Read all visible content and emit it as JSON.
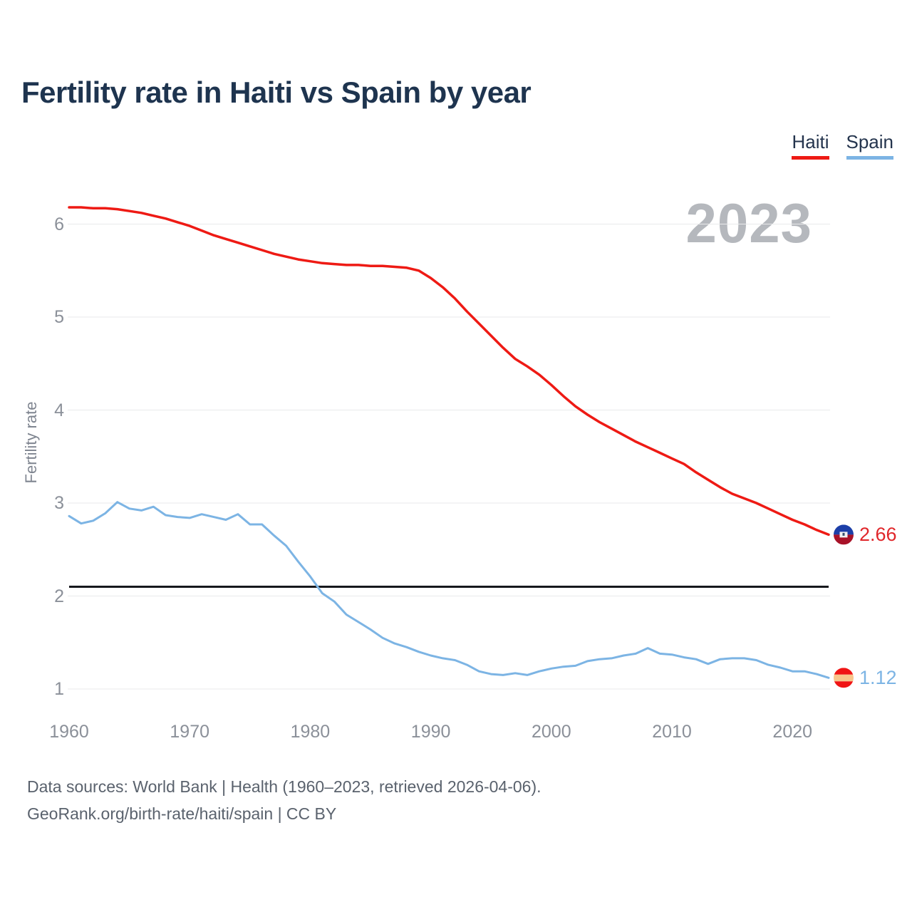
{
  "title": "Fertility rate in Haiti vs Spain by year",
  "watermark_year": "2023",
  "y_axis_title": "Fertility rate",
  "legend": {
    "items": [
      {
        "label": "Haiti",
        "color": "#ee1a14"
      },
      {
        "label": "Spain",
        "color": "#7cb4e4"
      }
    ]
  },
  "footer": {
    "line1": "Data sources: World Bank | Health (1960–2023, retrieved 2026-04-06).",
    "line2": "GeoRank.org/birth-rate/haiti/spain | CC BY"
  },
  "chart_data": {
    "type": "line",
    "title": "Fertility rate in Haiti vs Spain by year",
    "xlabel": "",
    "ylabel": "Fertility rate",
    "x_ticks": [
      1960,
      1970,
      1980,
      1990,
      2000,
      2010,
      2020
    ],
    "y_ticks": [
      1,
      2,
      3,
      4,
      5,
      6
    ],
    "xlim": [
      1960,
      2023
    ],
    "ylim": [
      1,
      6.5
    ],
    "grid": true,
    "legend_position": "top-right",
    "reference_line": {
      "value": 2.1,
      "color": "#16181d"
    },
    "x": [
      1960,
      1961,
      1962,
      1963,
      1964,
      1965,
      1966,
      1967,
      1968,
      1969,
      1970,
      1971,
      1972,
      1973,
      1974,
      1975,
      1976,
      1977,
      1978,
      1979,
      1980,
      1981,
      1982,
      1983,
      1984,
      1985,
      1986,
      1987,
      1988,
      1989,
      1990,
      1991,
      1992,
      1993,
      1994,
      1995,
      1996,
      1997,
      1998,
      1999,
      2000,
      2001,
      2002,
      2003,
      2004,
      2005,
      2006,
      2007,
      2008,
      2009,
      2010,
      2011,
      2012,
      2013,
      2014,
      2015,
      2016,
      2017,
      2018,
      2019,
      2020,
      2021,
      2022,
      2023
    ],
    "series": [
      {
        "name": "Haiti",
        "color": "#ee1a14",
        "end_label": "2.66",
        "end_value": 2.66,
        "values": [
          6.18,
          6.18,
          6.17,
          6.17,
          6.16,
          6.14,
          6.12,
          6.09,
          6.06,
          6.02,
          5.98,
          5.93,
          5.88,
          5.84,
          5.8,
          5.76,
          5.72,
          5.68,
          5.65,
          5.62,
          5.6,
          5.58,
          5.57,
          5.56,
          5.56,
          5.55,
          5.55,
          5.54,
          5.53,
          5.5,
          5.42,
          5.32,
          5.2,
          5.06,
          4.93,
          4.8,
          4.67,
          4.55,
          4.47,
          4.38,
          4.27,
          4.15,
          4.04,
          3.95,
          3.87,
          3.8,
          3.73,
          3.66,
          3.6,
          3.54,
          3.48,
          3.42,
          3.33,
          3.25,
          3.17,
          3.1,
          3.05,
          3.0,
          2.94,
          2.88,
          2.82,
          2.77,
          2.71,
          2.66
        ]
      },
      {
        "name": "Spain",
        "color": "#7cb4e4",
        "end_label": "1.12",
        "end_value": 1.12,
        "values": [
          2.86,
          2.78,
          2.81,
          2.89,
          3.01,
          2.94,
          2.92,
          2.96,
          2.87,
          2.85,
          2.84,
          2.88,
          2.85,
          2.82,
          2.88,
          2.77,
          2.77,
          2.65,
          2.54,
          2.37,
          2.21,
          2.03,
          1.94,
          1.8,
          1.72,
          1.64,
          1.55,
          1.49,
          1.45,
          1.4,
          1.36,
          1.33,
          1.31,
          1.26,
          1.19,
          1.16,
          1.15,
          1.17,
          1.15,
          1.19,
          1.22,
          1.24,
          1.25,
          1.3,
          1.32,
          1.33,
          1.36,
          1.38,
          1.44,
          1.38,
          1.37,
          1.34,
          1.32,
          1.27,
          1.32,
          1.33,
          1.33,
          1.31,
          1.26,
          1.23,
          1.19,
          1.19,
          1.16,
          1.12
        ]
      }
    ]
  }
}
